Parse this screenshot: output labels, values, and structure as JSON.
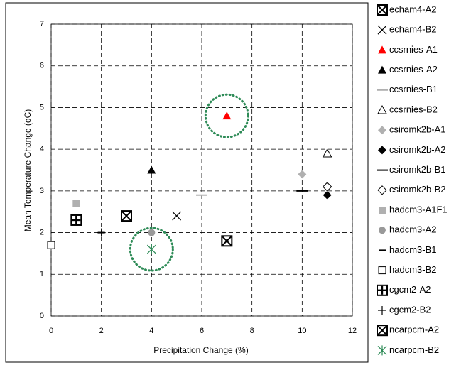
{
  "chart_data": {
    "type": "scatter",
    "x_label": "Precipitation Change  (%)",
    "y_label": "Mean Temperature Change (oC)",
    "xlim": [
      0,
      12
    ],
    "xticks": [
      0,
      2,
      4,
      6,
      8,
      10,
      12
    ],
    "ylim": [
      0,
      7
    ],
    "yticks": [
      0,
      1,
      2,
      3,
      4,
      5,
      6,
      7
    ],
    "grid": true,
    "legend": "right",
    "series": [
      {
        "name": "echam4-A2",
        "color": "#000000",
        "marker": "boxed-x",
        "x": [
          3
        ],
        "values": [
          2.4
        ]
      },
      {
        "name": "echam4-B2",
        "color": "#000000",
        "marker": "x",
        "x": [
          5
        ],
        "values": [
          2.4
        ]
      },
      {
        "name": "ccsrnies-A1",
        "color": "#ff0000",
        "marker": "triangle",
        "x": [
          7
        ],
        "values": [
          4.8
        ],
        "highlight": true
      },
      {
        "name": "ccsrnies-A2",
        "color": "#000000",
        "marker": "triangle",
        "x": [
          4
        ],
        "values": [
          3.5
        ]
      },
      {
        "name": "ccsrnies-B1",
        "color": "#b0b0b0",
        "marker": "dash",
        "x": [
          6
        ],
        "values": [
          2.9
        ]
      },
      {
        "name": "ccsrnies-B2",
        "color": "#000000",
        "marker": "open-triangle",
        "x": [
          11
        ],
        "values": [
          3.9
        ]
      },
      {
        "name": "csiromk2b-A1",
        "color": "#b0b0b0",
        "marker": "diamond",
        "x": [
          10
        ],
        "values": [
          3.4
        ]
      },
      {
        "name": "csiromk2b-A2",
        "color": "#000000",
        "marker": "diamond",
        "x": [
          11
        ],
        "values": [
          2.9
        ]
      },
      {
        "name": "csiromk2b-B1",
        "color": "#000000",
        "marker": "dash",
        "x": [
          10
        ],
        "values": [
          3.0
        ]
      },
      {
        "name": "csiromk2b-B2",
        "color": "#000000",
        "marker": "open-diamond",
        "x": [
          11
        ],
        "values": [
          3.1
        ]
      },
      {
        "name": "hadcm3-A1F1",
        "color": "#b0b0b0",
        "marker": "square",
        "x": [
          1
        ],
        "values": [
          2.7
        ]
      },
      {
        "name": "hadcm3-A2",
        "color": "#999999",
        "marker": "circle",
        "x": [
          4
        ],
        "values": [
          2.0
        ]
      },
      {
        "name": "hadcm3-B1",
        "color": "#000000",
        "marker": "short-dash",
        "x": [
          2
        ],
        "values": [
          2.0
        ]
      },
      {
        "name": "hadcm3-B2",
        "color": "#000000",
        "marker": "open-square",
        "x": [
          0
        ],
        "values": [
          1.7
        ]
      },
      {
        "name": "cgcm2-A2",
        "color": "#000000",
        "marker": "boxed-plus",
        "x": [
          1
        ],
        "values": [
          2.3
        ]
      },
      {
        "name": "cgcm2-B2",
        "color": "#000000",
        "marker": "plus",
        "x": [
          2
        ],
        "values": [
          2.0
        ]
      },
      {
        "name": "ncarpcm-A2",
        "color": "#000000",
        "marker": "boxed-x",
        "x": [
          7
        ],
        "values": [
          1.8
        ]
      },
      {
        "name": "ncarpcm-B2",
        "color": "#2e8b57",
        "marker": "asterisk",
        "x": [
          4
        ],
        "values": [
          1.6
        ],
        "highlight": true
      }
    ]
  }
}
